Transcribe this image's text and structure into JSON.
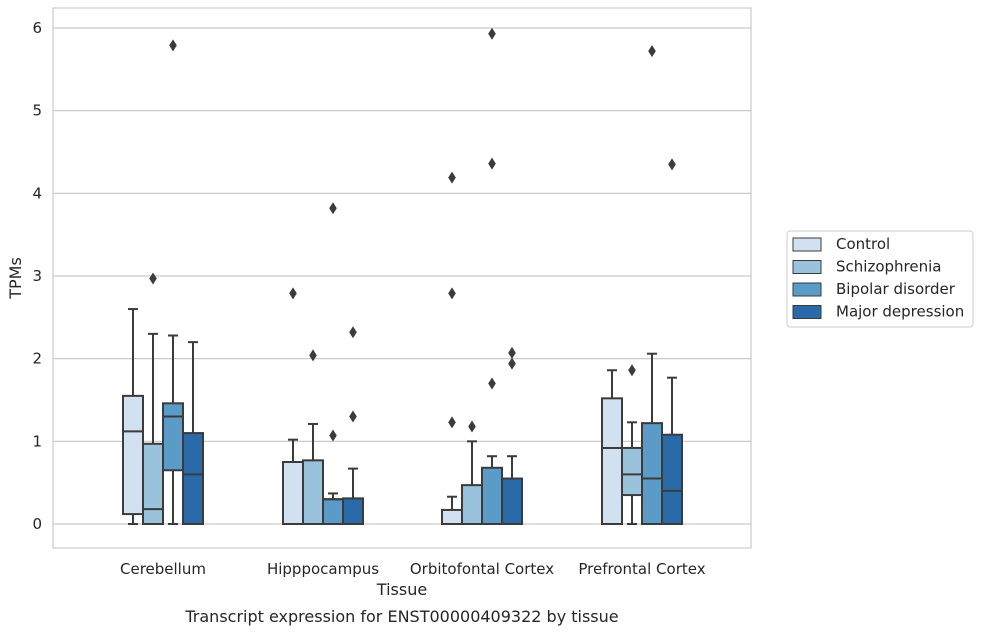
{
  "chart_data": {
    "type": "boxplot",
    "title": "",
    "caption": "Transcript expression for ENST00000409322 by tissue",
    "xlabel": "Tissue",
    "ylabel": "TPMs",
    "ylim": [
      -0.3,
      6.25
    ],
    "yticks": [
      0,
      1,
      2,
      3,
      4,
      5,
      6
    ],
    "grid": true,
    "legend_position": "right",
    "categories": [
      "Cerebellum",
      "Hipppocampus",
      "Orbitofontal Cortex",
      "Prefrontal Cortex"
    ],
    "series": [
      {
        "name": "Control",
        "color": "#d1e1f0",
        "boxes": [
          {
            "whislo": 0.0,
            "q1": 0.12,
            "med": 1.12,
            "q3": 1.55,
            "whishi": 2.6,
            "fliers": []
          },
          {
            "whislo": 0.0,
            "q1": 0.0,
            "med": 0.0,
            "q3": 0.75,
            "whishi": 1.02,
            "fliers": [
              2.79
            ]
          },
          {
            "whislo": 0.0,
            "q1": 0.0,
            "med": 0.0,
            "q3": 0.17,
            "whishi": 0.33,
            "fliers": [
              1.23,
              2.79,
              4.19
            ]
          },
          {
            "whislo": 0.0,
            "q1": 0.0,
            "med": 0.92,
            "q3": 1.52,
            "whishi": 1.86,
            "fliers": []
          }
        ]
      },
      {
        "name": "Schizophrenia",
        "color": "#9bc2dc",
        "boxes": [
          {
            "whislo": 0.0,
            "q1": 0.0,
            "med": 0.18,
            "q3": 0.97,
            "whishi": 2.3,
            "fliers": [
              2.97
            ]
          },
          {
            "whislo": 0.0,
            "q1": 0.0,
            "med": 0.0,
            "q3": 0.77,
            "whishi": 1.21,
            "fliers": [
              2.04
            ]
          },
          {
            "whislo": 0.0,
            "q1": 0.0,
            "med": 0.0,
            "q3": 0.47,
            "whishi": 1.0,
            "fliers": [
              1.18
            ]
          },
          {
            "whislo": 0.0,
            "q1": 0.35,
            "med": 0.6,
            "q3": 0.92,
            "whishi": 1.23,
            "fliers": [
              1.86
            ]
          }
        ]
      },
      {
        "name": "Bipolar disorder",
        "color": "#5a9bc8",
        "boxes": [
          {
            "whislo": 0.0,
            "q1": 0.65,
            "med": 1.3,
            "q3": 1.46,
            "whishi": 2.28,
            "fliers": [
              5.79
            ]
          },
          {
            "whislo": 0.0,
            "q1": 0.0,
            "med": 0.3,
            "q3": 0.3,
            "whishi": 0.37,
            "fliers": [
              1.07,
              3.82
            ]
          },
          {
            "whislo": 0.0,
            "q1": 0.0,
            "med": 0.0,
            "q3": 0.68,
            "whishi": 0.82,
            "fliers": [
              1.7,
              4.36,
              5.93
            ]
          },
          {
            "whislo": 0.0,
            "q1": 0.0,
            "med": 0.55,
            "q3": 1.22,
            "whishi": 2.06,
            "fliers": [
              5.72
            ]
          }
        ]
      },
      {
        "name": "Major depression",
        "color": "#2a6aa8",
        "boxes": [
          {
            "whislo": 0.0,
            "q1": 0.0,
            "med": 0.6,
            "q3": 1.1,
            "whishi": 2.2,
            "fliers": []
          },
          {
            "whislo": 0.0,
            "q1": 0.0,
            "med": 0.0,
            "q3": 0.31,
            "whishi": 0.67,
            "fliers": [
              1.3,
              2.32
            ]
          },
          {
            "whislo": 0.0,
            "q1": 0.0,
            "med": 0.0,
            "q3": 0.55,
            "whishi": 0.82,
            "fliers": [
              1.94,
              2.07
            ]
          },
          {
            "whislo": 0.0,
            "q1": 0.0,
            "med": 0.4,
            "q3": 1.08,
            "whishi": 1.77,
            "fliers": [
              4.35
            ]
          }
        ]
      }
    ]
  }
}
